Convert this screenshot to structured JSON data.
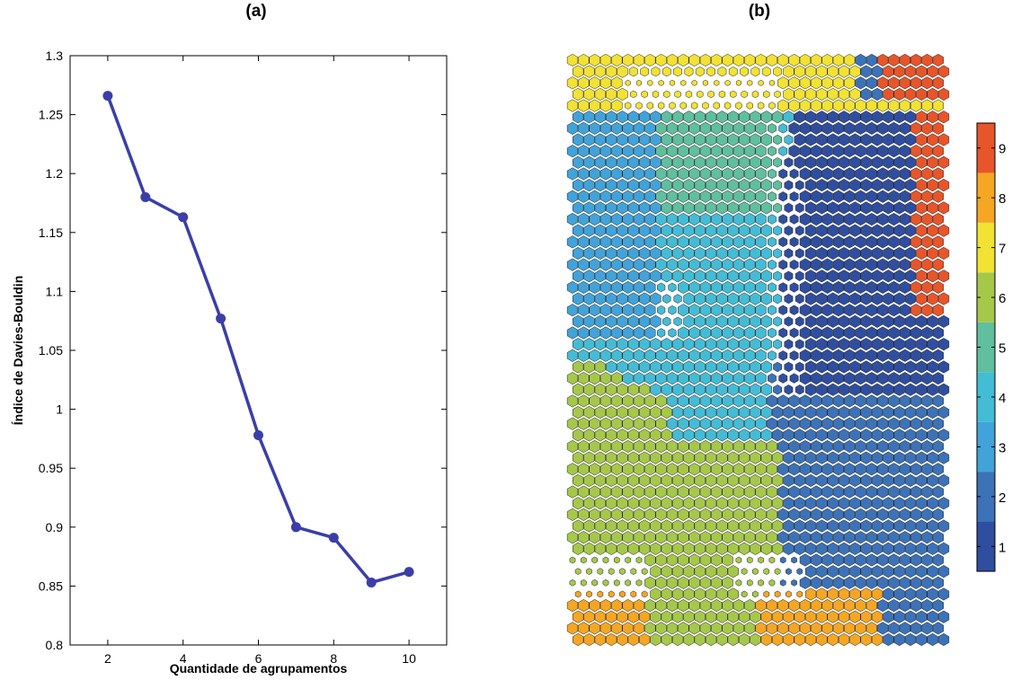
{
  "panels": {
    "a_title": "(a)",
    "b_title": "(b)"
  },
  "chart_data": [
    {
      "type": "line",
      "title": "(a)",
      "xlabel": "Quantidade de agrupamentos",
      "ylabel": "Índice de Davies-Bouldin",
      "x": [
        2,
        3,
        4,
        5,
        6,
        7,
        8,
        9,
        10
      ],
      "series": [
        {
          "values": [
            1.266,
            1.18,
            1.163,
            1.077,
            0.978,
            0.9,
            0.891,
            0.853,
            0.862
          ]
        }
      ],
      "xlim": [
        1,
        11
      ],
      "ylim": [
        0.8,
        1.3
      ],
      "xticks": [
        2,
        4,
        6,
        8,
        10
      ],
      "xtick_labels": [
        "2",
        "4",
        "6",
        "8",
        "10"
      ],
      "yticks": [
        0.8,
        0.85,
        0.9,
        0.95,
        1.0,
        1.05,
        1.1,
        1.15,
        1.2,
        1.25,
        1.3
      ],
      "ytick_labels": [
        "0.8",
        "0.85",
        "0.9",
        "0.95",
        "1",
        "1.05",
        "1.1",
        "1.15",
        "1.2",
        "1.25",
        "1.3"
      ],
      "line_color": "#3a3fa8",
      "grid": false
    },
    {
      "type": "heatmap",
      "title": "(b)",
      "description_kind": "SOM hexagonal map with cluster labels",
      "grid_cols": 34,
      "grid_rows": 52,
      "colorbar": {
        "range": [
          0.5,
          9.5
        ],
        "ticks": [
          "1",
          "2",
          "3",
          "4",
          "5",
          "6",
          "7",
          "8",
          "9"
        ],
        "colors": [
          "#2f4ea0",
          "#3c72b8",
          "#41a3d9",
          "#44bcd6",
          "#5fbf9e",
          "#a6c84a",
          "#f2e233",
          "#f5a623",
          "#e8552a"
        ]
      }
    }
  ]
}
